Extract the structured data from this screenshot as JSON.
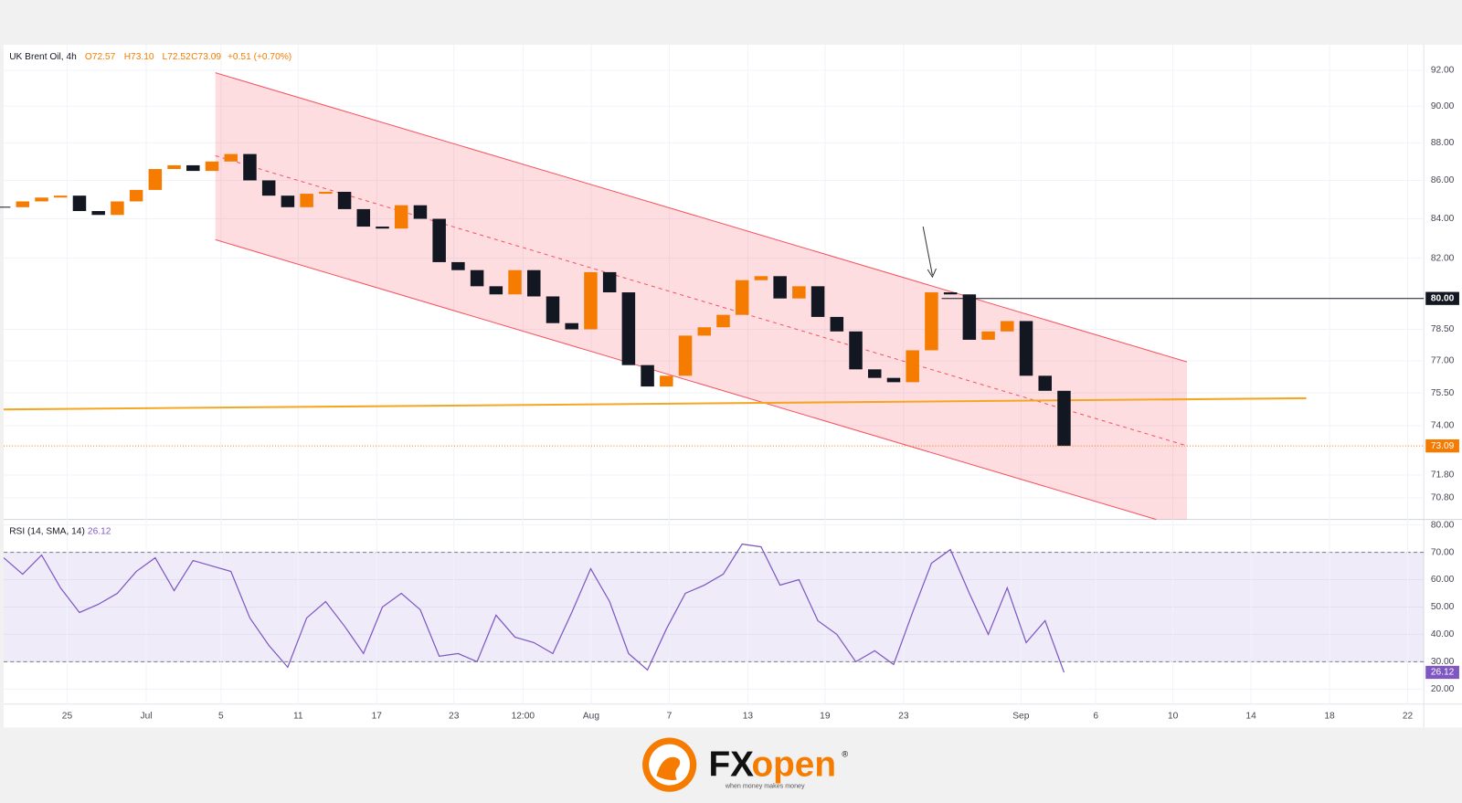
{
  "chart_data": {
    "type": "candlestick",
    "symbol": "UK Brent Oil, 4h",
    "ohlc": [
      "O72.57",
      "H73.10",
      "L72.52",
      "C73.09"
    ],
    "change": "+0.51 (+0.70%)",
    "log": true,
    "grid": true,
    "up_color": "#f57c00",
    "down_color": "#131722",
    "x": [
      0,
      4,
      8,
      12,
      16,
      20,
      24,
      28,
      32,
      36,
      40,
      44,
      48,
      52,
      56,
      60,
      64,
      68,
      72,
      76,
      80,
      84,
      88,
      92,
      96,
      100,
      104,
      108,
      112,
      116,
      120,
      124,
      128,
      132,
      136,
      140,
      144,
      148,
      152,
      156,
      160,
      164,
      168,
      172,
      176,
      180,
      184,
      188,
      192,
      196,
      200,
      204,
      208,
      212,
      216,
      220,
      224
    ],
    "closes": [
      84.6,
      84.9,
      85.1,
      85.2,
      84.4,
      84.2,
      84.9,
      85.5,
      86.6,
      86.8,
      86.5,
      87.0,
      87.4,
      86.0,
      85.2,
      84.6,
      85.3,
      85.4,
      84.5,
      83.6,
      83.5,
      84.7,
      84.0,
      81.8,
      81.4,
      80.6,
      80.2,
      81.4,
      80.1,
      78.8,
      78.5,
      81.3,
      80.3,
      76.8,
      75.8,
      76.3,
      78.2,
      78.6,
      79.2,
      80.9,
      81.1,
      80.0,
      80.6,
      79.1,
      78.4,
      76.6,
      76.2,
      76.0,
      77.5,
      80.3,
      80.2,
      78.0,
      78.4,
      78.9,
      76.3,
      75.6,
      73.09
    ],
    "xlim": [
      0,
      300
    ],
    "xticks": [
      {
        "value": 13.4,
        "label": "25"
      },
      {
        "value": 30.1,
        "label": "Jul"
      },
      {
        "value": 45.9,
        "label": "5"
      },
      {
        "value": 62.2,
        "label": "11"
      },
      {
        "value": 78.8,
        "label": "17"
      },
      {
        "value": 95.1,
        "label": "23"
      },
      {
        "value": 109.7,
        "label": "12:00"
      },
      {
        "value": 124.1,
        "label": "Aug"
      },
      {
        "value": 140.6,
        "label": "7"
      },
      {
        "value": 157.2,
        "label": "13"
      },
      {
        "value": 173.5,
        "label": "19"
      },
      {
        "value": 190.1,
        "label": "23"
      },
      {
        "value": 214.9,
        "label": "Sep"
      },
      {
        "value": 230.7,
        "label": "6"
      },
      {
        "value": 247,
        "label": "10"
      },
      {
        "value": 263.5,
        "label": "14"
      },
      {
        "value": 280.1,
        "label": "18"
      },
      {
        "value": 296.6,
        "label": "22"
      }
    ],
    "ylim": [
      69.87,
      93.45
    ],
    "yticks": [
      {
        "value": 70.8,
        "label": "70.80"
      },
      {
        "value": 71.8,
        "label": "71.80"
      },
      {
        "value": 74,
        "label": "74.00"
      },
      {
        "value": 75.5,
        "label": "75.50"
      },
      {
        "value": 77,
        "label": "77.00"
      },
      {
        "value": 78.5,
        "label": "78.50"
      },
      {
        "value": 82,
        "label": "82.00"
      },
      {
        "value": 84,
        "label": "84.00"
      },
      {
        "value": 86,
        "label": "86.00"
      },
      {
        "value": 88,
        "label": "88.00"
      },
      {
        "value": 90,
        "label": "90.00"
      },
      {
        "value": 92,
        "label": "92.00"
      }
    ],
    "level": {
      "value": 80,
      "label": "80.00"
    },
    "rsi": {
      "type": "line",
      "label": "RSI (14, SMA, 14)",
      "color": "#7e57c2",
      "values": [
        68,
        62,
        69,
        57,
        48,
        51,
        55,
        63,
        68,
        56,
        67,
        65,
        63,
        46,
        36,
        28,
        46,
        52,
        43,
        33,
        50,
        55,
        49,
        32,
        33,
        30,
        47,
        39,
        37,
        33,
        48,
        64,
        52,
        33,
        27,
        42,
        55,
        58,
        62,
        73,
        72,
        58,
        60,
        45,
        40,
        30,
        34,
        29,
        48,
        66,
        71,
        55,
        40,
        57,
        37,
        45,
        26.12
      ],
      "ylim": [
        14.5,
        82
      ],
      "yticks": [
        {
          "value": 80,
          "label": "80.00"
        },
        {
          "value": 70,
          "label": "70.00"
        },
        {
          "value": 60,
          "label": "60.00"
        },
        {
          "value": 50,
          "label": "50.00"
        },
        {
          "value": 40,
          "label": "40.00"
        },
        {
          "value": 30,
          "label": "30.00"
        },
        {
          "value": 20,
          "label": "20.00"
        }
      ]
    }
  },
  "logo": {
    "brand_a": "FX",
    "brand_b": "open",
    "mark": "®",
    "tagline": "when money makes money"
  }
}
